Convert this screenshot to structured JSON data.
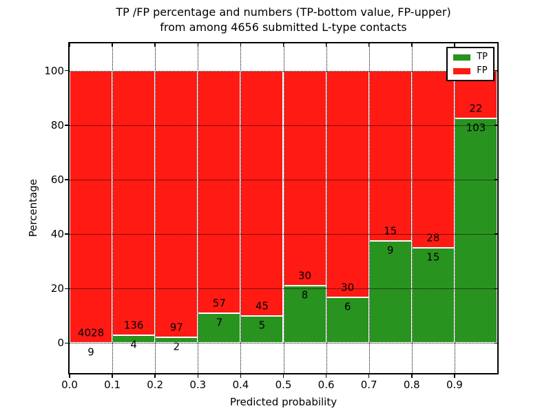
{
  "title": {
    "line1": "TP /FP percentage and numbers (TP-bottom value, FP-upper)",
    "line2": "from among 4656 submitted L-type contacts"
  },
  "axes": {
    "xlabel": "Predicted probability",
    "ylabel": "Percentage"
  },
  "legend": {
    "tp_label": "TP",
    "fp_label": "FP"
  },
  "colors": {
    "tp_green": "#28931f",
    "fp_red": "#ff1a14",
    "grid": "#000000",
    "background": "#ffffff"
  },
  "chart_data": {
    "type": "bar",
    "stacked": true,
    "normalized_to_percent": true,
    "title": "TP /FP percentage and numbers (TP-bottom value, FP-upper) from among 4656 submitted L-type contacts",
    "xlabel": "Predicted probability",
    "ylabel": "Percentage",
    "xlim": [
      0.0,
      1.0
    ],
    "ylim": [
      -11,
      110
    ],
    "grid": "dotted",
    "legend_position": "upper right",
    "legend_entries": [
      {
        "label": "TP",
        "color": "#28931f"
      },
      {
        "label": "FP",
        "color": "#ff1a14"
      }
    ],
    "total_contacts": 4656,
    "x_ticks": [
      "0.0",
      "0.1",
      "0.2",
      "0.3",
      "0.4",
      "0.5",
      "0.6",
      "0.7",
      "0.8",
      "0.9"
    ],
    "y_ticks": [
      0,
      20,
      40,
      60,
      80,
      100
    ],
    "bins": [
      {
        "range": [
          0.0,
          0.1
        ],
        "tp": 9,
        "fp": 4028,
        "tp_pct": 0.22
      },
      {
        "range": [
          0.1,
          0.2
        ],
        "tp": 4,
        "fp": 136,
        "tp_pct": 2.86
      },
      {
        "range": [
          0.2,
          0.3
        ],
        "tp": 2,
        "fp": 97,
        "tp_pct": 2.02
      },
      {
        "range": [
          0.3,
          0.4
        ],
        "tp": 7,
        "fp": 57,
        "tp_pct": 10.94
      },
      {
        "range": [
          0.4,
          0.5
        ],
        "tp": 5,
        "fp": 45,
        "tp_pct": 10.0
      },
      {
        "range": [
          0.5,
          0.6
        ],
        "tp": 8,
        "fp": 30,
        "tp_pct": 21.05
      },
      {
        "range": [
          0.6,
          0.7
        ],
        "tp": 6,
        "fp": 30,
        "tp_pct": 16.67
      },
      {
        "range": [
          0.7,
          0.8
        ],
        "tp": 9,
        "fp": 15,
        "tp_pct": 37.5
      },
      {
        "range": [
          0.8,
          0.9
        ],
        "tp": 15,
        "fp": 28,
        "tp_pct": 34.88
      },
      {
        "range": [
          0.9,
          1.0
        ],
        "tp": 103,
        "fp": 22,
        "tp_pct": 82.4
      }
    ]
  }
}
